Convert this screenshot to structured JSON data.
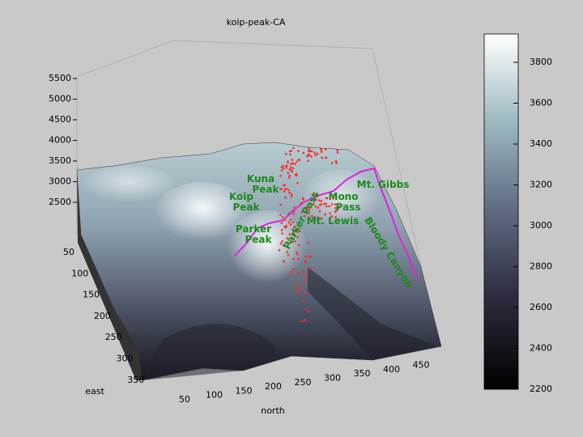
{
  "title": "koip-peak-CA",
  "axes": {
    "z_ticks": [
      5500,
      5000,
      4500,
      4000,
      3500,
      3000,
      2500
    ],
    "east_label": "east",
    "east_ticks": [
      50,
      100,
      150,
      200,
      250,
      300,
      350
    ],
    "north_label": "north",
    "north_ticks": [
      50,
      100,
      150,
      200,
      250,
      300,
      350,
      400,
      450
    ]
  },
  "colorbar": {
    "ticks": [
      3800,
      3600,
      3400,
      3200,
      3000,
      2800,
      2600,
      2400,
      2200
    ]
  },
  "places": [
    {
      "lines": [
        "Kuna",
        "Peak"
      ]
    },
    {
      "lines": [
        "Koip",
        "Peak"
      ]
    },
    {
      "lines": [
        "Parker",
        "Peak"
      ]
    },
    {
      "lines": [
        "Mt. Gibbs"
      ]
    },
    {
      "lines": [
        "Mt. Lewis"
      ]
    },
    {
      "lines": [
        "Mono",
        "Pass"
      ]
    },
    {
      "lines": [
        "Parker Pass"
      ]
    },
    {
      "lines": [
        "Bloody Canyon"
      ]
    }
  ]
}
